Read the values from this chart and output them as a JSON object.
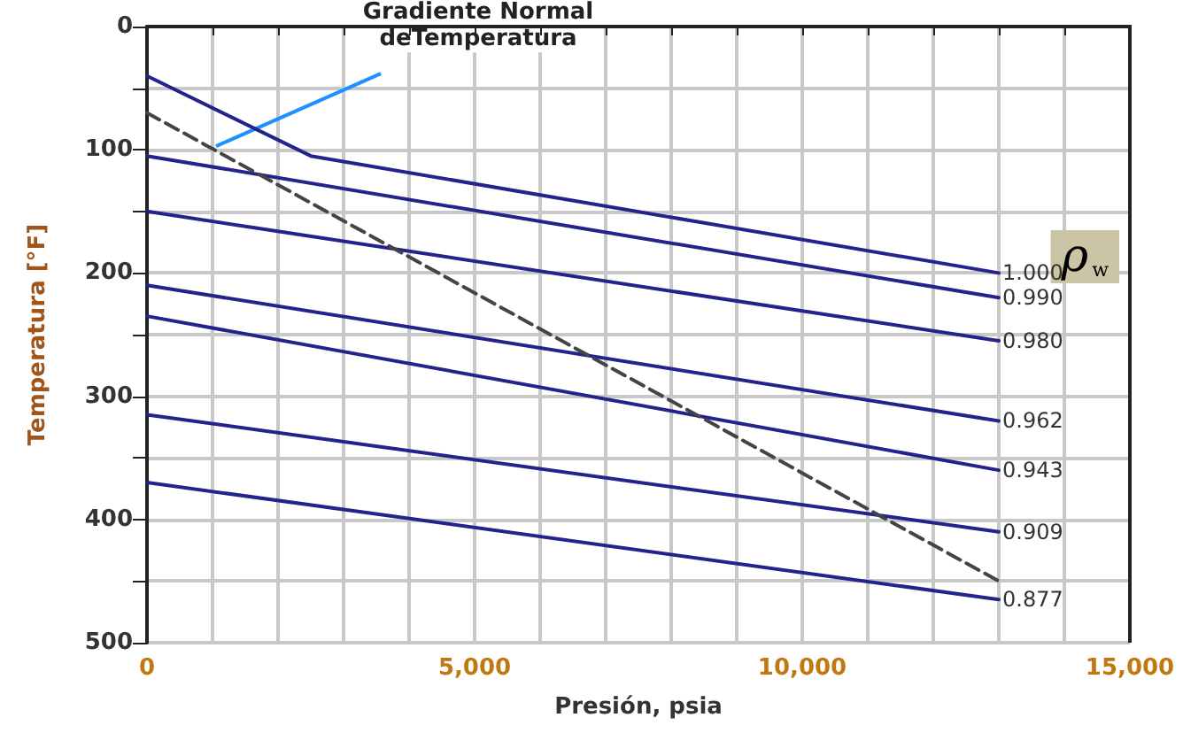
{
  "chart_data": {
    "type": "line",
    "xlabel": "Presión, psia",
    "ylabel": "Temperatura [°F]",
    "legend_title": "ρ$_{w}$",
    "xlim": [
      0,
      15000
    ],
    "ylim": [
      500,
      0
    ],
    "xticks": [
      {
        "value": 0,
        "label": "0"
      },
      {
        "value": 1000,
        "label": null
      },
      {
        "value": 2000,
        "label": null
      },
      {
        "value": 3000,
        "label": null
      },
      {
        "value": 4000,
        "label": null
      },
      {
        "value": 5000,
        "label": "5,000"
      },
      {
        "value": 6000,
        "label": null
      },
      {
        "value": 7000,
        "label": null
      },
      {
        "value": 8000,
        "label": null
      },
      {
        "value": 9000,
        "label": null
      },
      {
        "value": 10000,
        "label": "10,000"
      },
      {
        "value": 11000,
        "label": null
      },
      {
        "value": 12000,
        "label": null
      },
      {
        "value": 13000,
        "label": null
      },
      {
        "value": 14000,
        "label": null
      },
      {
        "value": 15000,
        "label": "15,000"
      }
    ],
    "yticks": [
      0,
      {
        "value": 50,
        "label": null
      },
      100,
      {
        "value": 150,
        "label": null
      },
      200,
      {
        "value": 250,
        "label": null
      },
      300,
      {
        "value": 350,
        "label": null
      },
      400,
      {
        "value": 450,
        "label": null
      },
      500
    ],
    "grid": true,
    "marker": "none",
    "line_style": "solid",
    "series": [
      {
        "name": "1.000",
        "color": "#23238c",
        "x": [
          0,
          2500,
          13000
        ],
        "values": [
          40,
          105,
          200
        ]
      },
      {
        "name": "0.990",
        "color": "#23238c",
        "x": [
          0,
          13000
        ],
        "values": [
          105,
          220
        ]
      },
      {
        "name": "0.980",
        "color": "#23238c",
        "x": [
          0,
          13000
        ],
        "values": [
          150,
          255
        ]
      },
      {
        "name": "0.962",
        "color": "#23238c",
        "x": [
          0,
          13000
        ],
        "values": [
          210,
          320
        ]
      },
      {
        "name": "0.943",
        "color": "#23238c",
        "x": [
          0,
          13000
        ],
        "values": [
          235,
          360
        ]
      },
      {
        "name": "0.909",
        "color": "#23238c",
        "x": [
          0,
          13000
        ],
        "values": [
          315,
          410
        ]
      },
      {
        "name": "0.877",
        "color": "#23238c",
        "x": [
          0,
          13000
        ],
        "values": [
          370,
          465
        ]
      },
      {
        "color": "#444444",
        "line_style": "dashed",
        "x": [
          0,
          13000
        ],
        "values": [
          70,
          450
        ]
      }
    ],
    "annotations": [
      {
        "text": "Gradiente Normal\ndeTemperatura",
        "x": 1000,
        "y": 100
      }
    ]
  }
}
